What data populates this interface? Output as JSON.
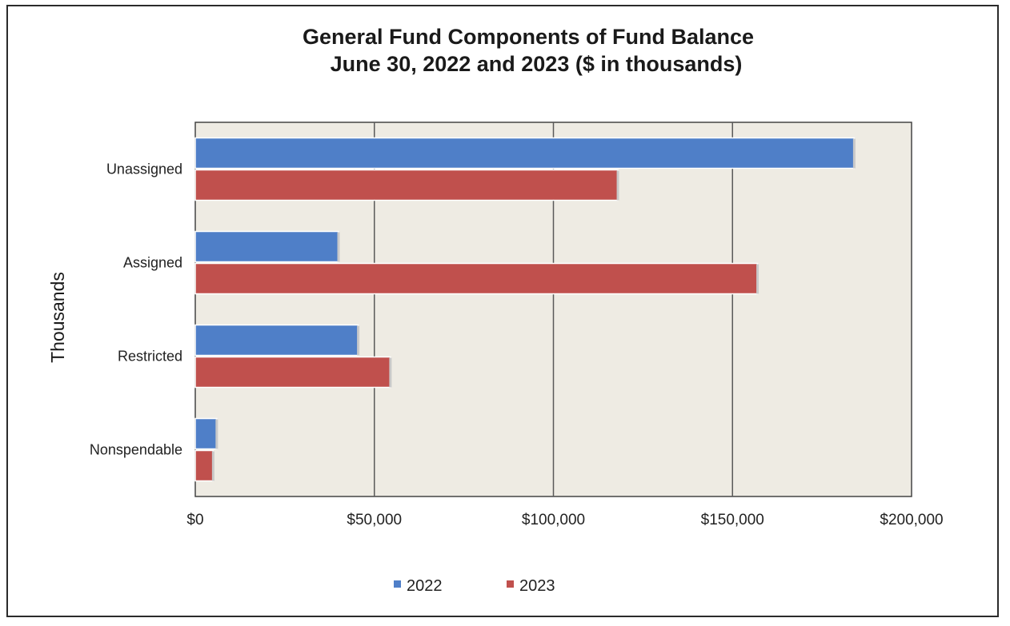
{
  "chart_data": {
    "type": "bar",
    "orientation": "horizontal",
    "title": "General Fund Components of Fund Balance",
    "subtitle": "June 30, 2022 and 2023 ($ in thousands)",
    "ylabel": "Thousands",
    "xlabel": "",
    "categories": [
      "Unassigned",
      "Assigned",
      "Restricted",
      "Nonspendable"
    ],
    "series": [
      {
        "name": "2022",
        "color": "#4f7fc8",
        "values": [
          184000,
          40000,
          45500,
          6000
        ]
      },
      {
        "name": "2023",
        "color": "#c0504d",
        "values": [
          118000,
          157000,
          54500,
          5000
        ]
      }
    ],
    "xlim": [
      0,
      200000
    ],
    "x_ticks": [
      0,
      50000,
      100000,
      150000,
      200000
    ],
    "x_tick_labels": [
      "$0",
      "$50,000",
      "$100,000",
      "$150,000",
      "$200,000"
    ],
    "grid": true,
    "plot_background": "#eeebe3",
    "legend_position": "bottom"
  }
}
